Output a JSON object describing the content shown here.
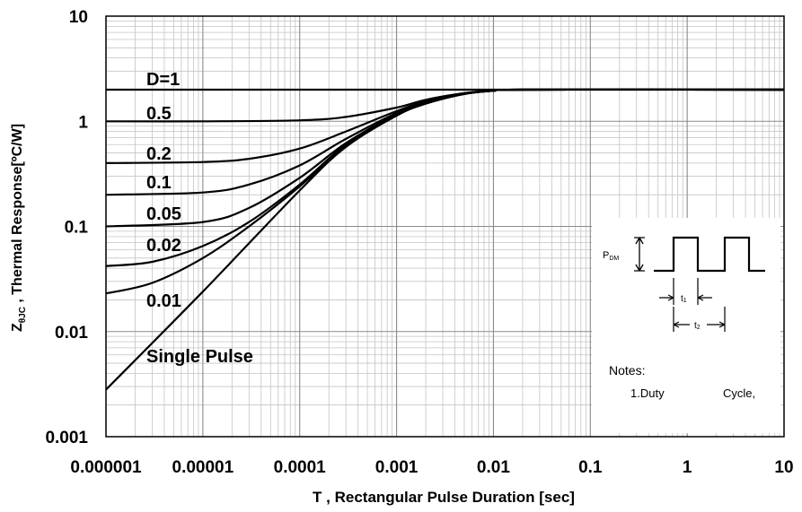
{
  "chart_data": {
    "type": "line",
    "title": "",
    "xlabel": "T , Rectangular Pulse Duration [sec]",
    "ylabel": {
      "prefix": "Z",
      "subscript": "θJC",
      "suffix": " , Thermal Response[ºC/W]"
    },
    "x_scale": "log",
    "y_scale": "log",
    "xlim": [
      1e-06,
      10
    ],
    "ylim": [
      0.001,
      10
    ],
    "grid": true,
    "x_ticks": [
      1e-06,
      1e-05,
      0.0001,
      0.001,
      0.01,
      0.1,
      1,
      10
    ],
    "x_tick_labels": [
      "0.000001",
      "0.00001",
      "0.0001",
      "0.001",
      "0.01",
      "0.1",
      "1",
      "10"
    ],
    "y_ticks": [
      0.001,
      0.01,
      0.1,
      1,
      10
    ],
    "y_tick_labels": [
      "0.001",
      "0.01",
      "0.1",
      "1",
      "10"
    ],
    "series": [
      {
        "name": "D=1",
        "x": [
          1e-06,
          10
        ],
        "y": [
          2.0,
          2.0
        ]
      },
      {
        "name": "0.5",
        "x": [
          1e-06,
          1e-05,
          0.0001,
          0.0003,
          0.001,
          0.002,
          0.005,
          0.01,
          0.02,
          10
        ],
        "y": [
          1.0,
          1.0,
          1.02,
          1.1,
          1.35,
          1.6,
          1.85,
          1.95,
          2.0,
          2.0
        ]
      },
      {
        "name": "0.2",
        "x": [
          1e-06,
          1e-05,
          3e-05,
          0.0001,
          0.0003,
          0.001,
          0.002,
          0.005,
          0.01,
          0.02,
          10
        ],
        "y": [
          0.4,
          0.41,
          0.44,
          0.55,
          0.8,
          1.25,
          1.55,
          1.85,
          1.95,
          2.0,
          2.0
        ]
      },
      {
        "name": "0.1",
        "x": [
          1e-06,
          1e-05,
          3e-05,
          0.0001,
          0.0003,
          0.001,
          0.002,
          0.005,
          0.01,
          0.02,
          10
        ],
        "y": [
          0.2,
          0.21,
          0.25,
          0.38,
          0.68,
          1.2,
          1.52,
          1.83,
          1.95,
          2.0,
          2.0
        ]
      },
      {
        "name": "0.05",
        "x": [
          1e-06,
          1e-05,
          3e-05,
          0.0001,
          0.0003,
          0.001,
          0.002,
          0.005,
          0.01,
          0.02,
          10
        ],
        "y": [
          0.1,
          0.11,
          0.15,
          0.29,
          0.62,
          1.17,
          1.5,
          1.82,
          1.95,
          2.0,
          2.0
        ]
      },
      {
        "name": "0.02",
        "x": [
          1e-06,
          3e-06,
          1e-05,
          3e-05,
          0.0001,
          0.0003,
          0.001,
          0.002,
          0.005,
          0.01,
          0.02,
          10
        ],
        "y": [
          0.042,
          0.046,
          0.065,
          0.11,
          0.25,
          0.6,
          1.15,
          1.48,
          1.82,
          1.95,
          2.0,
          2.0
        ]
      },
      {
        "name": "0.01",
        "x": [
          1e-06,
          3e-06,
          1e-05,
          3e-05,
          0.0001,
          0.0003,
          0.001,
          0.002,
          0.005,
          0.01,
          0.02,
          10
        ],
        "y": [
          0.023,
          0.029,
          0.05,
          0.1,
          0.24,
          0.59,
          1.14,
          1.47,
          1.82,
          1.95,
          2.0,
          2.0
        ]
      },
      {
        "name": "Single Pulse",
        "x": [
          1e-06,
          1e-05,
          0.0001,
          0.0003,
          0.001,
          0.002,
          0.005,
          0.01,
          0.02,
          10
        ],
        "y": [
          0.0028,
          0.024,
          0.22,
          0.57,
          1.13,
          1.47,
          1.82,
          1.95,
          2.0,
          2.0
        ]
      }
    ],
    "annotations": [
      "D=1",
      "0.5",
      "0.2",
      "0.1",
      "0.05",
      "0.02",
      "0.01",
      "Single Pulse"
    ],
    "inset": {
      "pulse_label": "P",
      "pulse_label_sub": "DM",
      "t1_label": "t",
      "t1_sub": "1",
      "t2_label": "t",
      "t2_sub": "2",
      "notes_title": "Notes:",
      "note_1a": "1.Duty",
      "note_1b": "Cycle,"
    }
  }
}
